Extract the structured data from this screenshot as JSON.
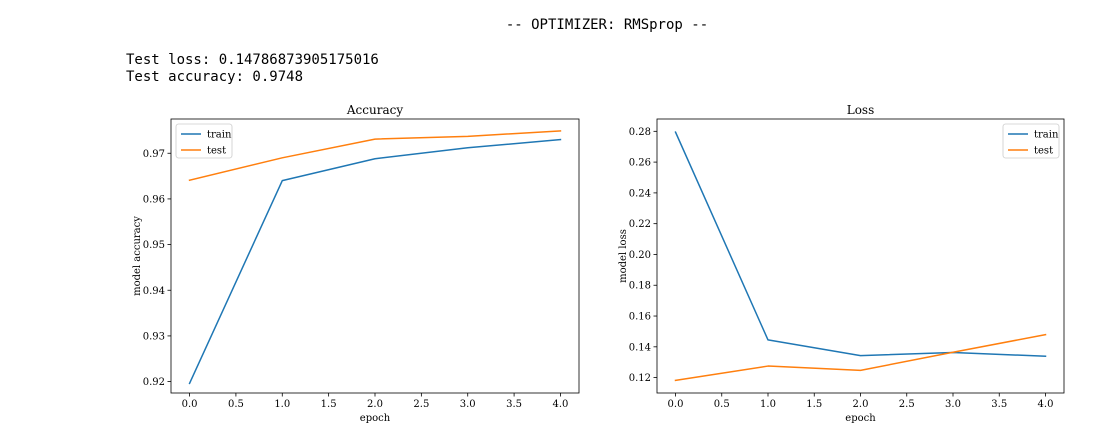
{
  "header": {
    "title": "-- OPTIMIZER: RMSprop --"
  },
  "stats": {
    "loss_line": "Test loss: 0.14786873905175016",
    "accuracy_line": "Test accuracy: 0.9748"
  },
  "colors": {
    "train": "#1f77b4",
    "test": "#ff7f0e"
  },
  "chart_data": [
    {
      "type": "line",
      "title": "Accuracy",
      "xlabel": "epoch",
      "ylabel": "model accuracy",
      "xlim": [
        -0.2,
        4.2
      ],
      "ylim": [
        0.9175,
        0.9775
      ],
      "xticks": [
        0.0,
        0.5,
        1.0,
        1.5,
        2.0,
        2.5,
        3.0,
        3.5,
        4.0
      ],
      "xtick_labels": [
        "0.0",
        "0.5",
        "1.0",
        "1.5",
        "2.0",
        "2.5",
        "3.0",
        "3.5",
        "4.0"
      ],
      "yticks": [
        0.92,
        0.93,
        0.94,
        0.95,
        0.96,
        0.97
      ],
      "ytick_labels": [
        "0.92",
        "0.93",
        "0.94",
        "0.95",
        "0.96",
        "0.97"
      ],
      "legend_position": "top-left",
      "grid": false,
      "x": [
        0,
        1,
        2,
        3,
        4
      ],
      "series": [
        {
          "name": "train",
          "values": [
            0.9196,
            0.964,
            0.9688,
            0.9712,
            0.973
          ]
        },
        {
          "name": "test",
          "values": [
            0.9641,
            0.969,
            0.9731,
            0.9737,
            0.9749
          ]
        }
      ]
    },
    {
      "type": "line",
      "title": "Loss",
      "xlabel": "epoch",
      "ylabel": "model loss",
      "xlim": [
        -0.2,
        4.2
      ],
      "ylim": [
        0.11,
        0.288
      ],
      "xticks": [
        0.0,
        0.5,
        1.0,
        1.5,
        2.0,
        2.5,
        3.0,
        3.5,
        4.0
      ],
      "xtick_labels": [
        "0.0",
        "0.5",
        "1.0",
        "1.5",
        "2.0",
        "2.5",
        "3.0",
        "3.5",
        "4.0"
      ],
      "yticks": [
        0.12,
        0.14,
        0.16,
        0.18,
        0.2,
        0.22,
        0.24,
        0.26,
        0.28
      ],
      "ytick_labels": [
        "0.12",
        "0.14",
        "0.16",
        "0.18",
        "0.20",
        "0.22",
        "0.24",
        "0.26",
        "0.28"
      ],
      "legend_position": "top-right",
      "grid": false,
      "x": [
        0,
        1,
        2,
        3,
        4
      ],
      "series": [
        {
          "name": "train",
          "values": [
            0.2795,
            0.1445,
            0.1343,
            0.1363,
            0.1339
          ]
        },
        {
          "name": "test",
          "values": [
            0.1182,
            0.1275,
            0.1247,
            0.1365,
            0.1479
          ]
        }
      ]
    }
  ]
}
